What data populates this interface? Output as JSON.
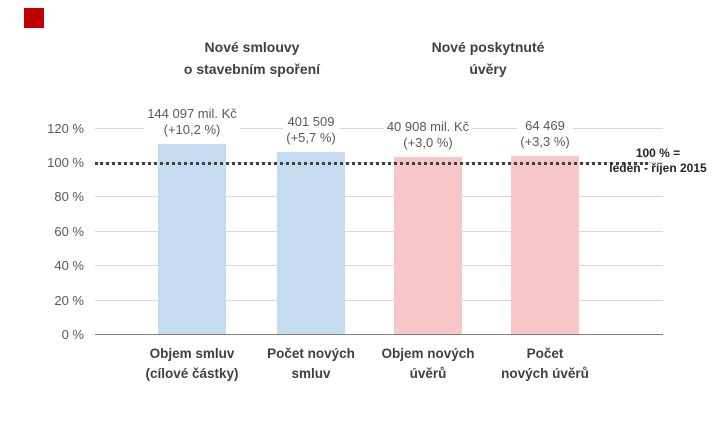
{
  "decor": {
    "red_square_color": "#C00000"
  },
  "chart_data": {
    "type": "bar",
    "title": "",
    "group_headers": [
      {
        "line1": "Nové smlouvy",
        "line2": "o stavebním spoření",
        "bars": [
          0,
          1
        ]
      },
      {
        "line1": "Nové poskytnuté",
        "line2": "úvěry",
        "bars": [
          2,
          3
        ]
      }
    ],
    "categories": [
      "Objem smluv (cílové částky)",
      "Počet nových smluv",
      "Objem nových úvěrů",
      "Počet nových úvěrů"
    ],
    "bars": [
      {
        "category_line1": "Objem smluv",
        "category_line2": "(cílové částky)",
        "value_pct": 110.2,
        "label_line1": "144 097 mil. Kč",
        "label_line2": "(+10,2 %)",
        "color": "#C5DBF0"
      },
      {
        "category_line1": "Počet nových",
        "category_line2": "smluv",
        "value_pct": 105.7,
        "label_line1": "401 509",
        "label_line2": "(+5,7 %)",
        "color": "#C5DBF0"
      },
      {
        "category_line1": "Objem nových",
        "category_line2": "úvěrů",
        "value_pct": 103.0,
        "label_line1": "40 908 mil. Kč",
        "label_line2": "(+3,0 %)",
        "color": "#F7C6C7"
      },
      {
        "category_line1": "Počet",
        "category_line2": "nových úvěrů",
        "value_pct": 103.3,
        "label_line1": "64 469",
        "label_line2": "(+3,3 %)",
        "color": "#F7C6C7"
      }
    ],
    "y_axis": {
      "ticks": [
        {
          "label": "120 %",
          "value": 120
        },
        {
          "label": "100 %",
          "value": 100
        },
        {
          "label": "80 %",
          "value": 80
        },
        {
          "label": "60 %",
          "value": 60
        },
        {
          "label": "40 %",
          "value": 40
        },
        {
          "label": "20 %",
          "value": 20
        },
        {
          "label": "0 %",
          "value": 0
        }
      ]
    },
    "ylim": [
      0,
      130
    ],
    "grid": true,
    "legend": "none",
    "reference_line": {
      "value_pct": 100,
      "style": "dotted",
      "color": "#404040",
      "label_line1": "100 % =",
      "label_line2": "leden - říjen 2015"
    },
    "colors": {
      "series_blue": "#C5DBF0",
      "series_pink": "#F7C6C7",
      "gridline": "#D9D9D9",
      "axis_line": "#7F7F7F",
      "tick_text": "#595959",
      "label_text": "#595959",
      "heading_text": "#404040"
    }
  }
}
